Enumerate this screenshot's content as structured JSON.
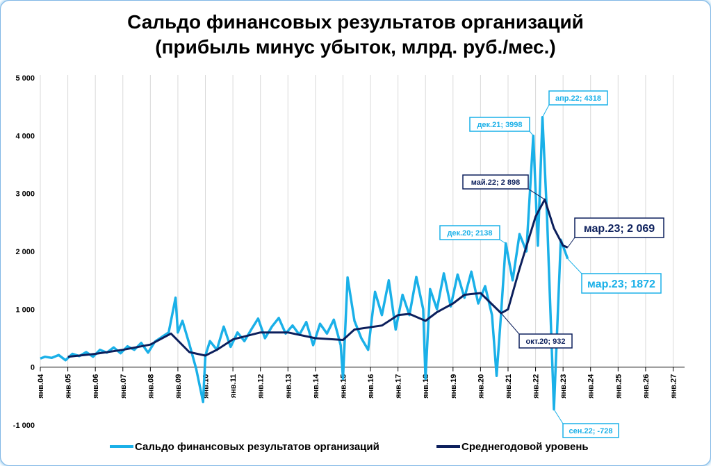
{
  "chart_data": {
    "type": "line",
    "title_line1": "Сальдо финансовых результатов организаций",
    "title_line2": "(прибыль минус убыток, млрд. руб./мес.)",
    "ylim": [
      -1000,
      5000
    ],
    "y_ticks": [
      "-1 000",
      "0",
      "1 000",
      "2 000",
      "3 000",
      "4 000",
      "5 000"
    ],
    "x_ticks": [
      "янв.04",
      "янв.05",
      "янв.06",
      "янв.07",
      "янв.08",
      "янв.09",
      "янв.10",
      "янв.11",
      "янв.12",
      "янв.13",
      "янв.14",
      "янв.15",
      "янв.16",
      "янв.17",
      "янв.18",
      "янв.19",
      "янв.20",
      "янв.21",
      "янв.22",
      "янв.23",
      "янв.24",
      "янв.25",
      "янв.26",
      "янв.27"
    ],
    "x_range": [
      "2004-01",
      "2027-06"
    ],
    "grid": "vertical",
    "legend_position": "bottom",
    "series": [
      {
        "name": "Сальдо финансовых результатов организаций",
        "color": "#1ab0e8",
        "points": [
          [
            "2004-01",
            150
          ],
          [
            "2004-03",
            180
          ],
          [
            "2004-06",
            160
          ],
          [
            "2004-09",
            210
          ],
          [
            "2004-12",
            120
          ],
          [
            "2005-03",
            230
          ],
          [
            "2005-06",
            190
          ],
          [
            "2005-09",
            260
          ],
          [
            "2005-12",
            180
          ],
          [
            "2006-03",
            300
          ],
          [
            "2006-06",
            250
          ],
          [
            "2006-09",
            340
          ],
          [
            "2006-12",
            240
          ],
          [
            "2007-03",
            360
          ],
          [
            "2007-06",
            300
          ],
          [
            "2007-09",
            420
          ],
          [
            "2007-12",
            250
          ],
          [
            "2008-03",
            440
          ],
          [
            "2008-06",
            520
          ],
          [
            "2008-09",
            600
          ],
          [
            "2008-12",
            1200
          ],
          [
            "2009-01",
            600
          ],
          [
            "2009-03",
            800
          ],
          [
            "2009-06",
            400
          ],
          [
            "2009-09",
            -30
          ],
          [
            "2009-12",
            -600
          ],
          [
            "2010-01",
            200
          ],
          [
            "2010-03",
            450
          ],
          [
            "2010-06",
            300
          ],
          [
            "2010-09",
            700
          ],
          [
            "2010-12",
            350
          ],
          [
            "2011-03",
            600
          ],
          [
            "2011-06",
            450
          ],
          [
            "2011-09",
            650
          ],
          [
            "2011-12",
            840
          ],
          [
            "2012-03",
            500
          ],
          [
            "2012-06",
            700
          ],
          [
            "2012-09",
            850
          ],
          [
            "2012-12",
            580
          ],
          [
            "2013-03",
            720
          ],
          [
            "2013-06",
            560
          ],
          [
            "2013-09",
            780
          ],
          [
            "2013-12",
            380
          ],
          [
            "2014-03",
            750
          ],
          [
            "2014-06",
            580
          ],
          [
            "2014-09",
            820
          ],
          [
            "2014-12",
            380
          ],
          [
            "2015-01",
            -200
          ],
          [
            "2015-03",
            1550
          ],
          [
            "2015-06",
            800
          ],
          [
            "2015-09",
            500
          ],
          [
            "2015-12",
            300
          ],
          [
            "2016-03",
            1300
          ],
          [
            "2016-06",
            900
          ],
          [
            "2016-09",
            1500
          ],
          [
            "2016-12",
            650
          ],
          [
            "2017-03",
            1250
          ],
          [
            "2017-06",
            900
          ],
          [
            "2017-09",
            1560
          ],
          [
            "2017-12",
            1000
          ],
          [
            "2018-01",
            -200
          ],
          [
            "2018-03",
            1350
          ],
          [
            "2018-06",
            1000
          ],
          [
            "2018-09",
            1620
          ],
          [
            "2018-12",
            1050
          ],
          [
            "2019-03",
            1600
          ],
          [
            "2019-06",
            1200
          ],
          [
            "2019-09",
            1650
          ],
          [
            "2019-12",
            1100
          ],
          [
            "2020-03",
            1400
          ],
          [
            "2020-06",
            900
          ],
          [
            "2020-08",
            -150
          ],
          [
            "2020-10",
            950
          ],
          [
            "2020-12",
            2138
          ],
          [
            "2021-03",
            1500
          ],
          [
            "2021-06",
            2300
          ],
          [
            "2021-09",
            2000
          ],
          [
            "2021-12",
            3998
          ],
          [
            "2022-02",
            2100
          ],
          [
            "2022-04",
            4318
          ],
          [
            "2022-06",
            2600
          ],
          [
            "2022-09",
            -728
          ],
          [
            "2022-12",
            2200
          ],
          [
            "2023-03",
            1872
          ]
        ]
      },
      {
        "name": "Среднегодовой уровень",
        "color": "#0c1f5c",
        "points": [
          [
            "2005-01",
            180
          ],
          [
            "2006-01",
            230
          ],
          [
            "2007-01",
            300
          ],
          [
            "2008-01",
            390
          ],
          [
            "2008-10",
            580
          ],
          [
            "2009-06",
            260
          ],
          [
            "2010-01",
            200
          ],
          [
            "2010-06",
            300
          ],
          [
            "2011-01",
            480
          ],
          [
            "2012-01",
            600
          ],
          [
            "2013-01",
            600
          ],
          [
            "2014-01",
            500
          ],
          [
            "2015-01",
            470
          ],
          [
            "2015-06",
            650
          ],
          [
            "2016-06",
            720
          ],
          [
            "2017-01",
            900
          ],
          [
            "2017-06",
            920
          ],
          [
            "2018-01",
            800
          ],
          [
            "2018-06",
            950
          ],
          [
            "2019-01",
            1100
          ],
          [
            "2019-06",
            1250
          ],
          [
            "2020-01",
            1280
          ],
          [
            "2020-10",
            932
          ],
          [
            "2021-01",
            1000
          ],
          [
            "2021-06",
            1700
          ],
          [
            "2022-01",
            2600
          ],
          [
            "2022-05",
            2898
          ],
          [
            "2022-09",
            2400
          ],
          [
            "2023-01",
            2100
          ],
          [
            "2023-03",
            2069
          ]
        ]
      }
    ],
    "annotations": [
      {
        "text": "апр.22; 4318",
        "series": 0,
        "at": "2022-04"
      },
      {
        "text": "дек.21; 3998",
        "series": 0,
        "at": "2021-12"
      },
      {
        "text": "май.22; 2 898",
        "series": 1,
        "at": "2022-05"
      },
      {
        "text": "дек.20; 2138",
        "series": 0,
        "at": "2020-12"
      },
      {
        "text": "мар.23; 2 069",
        "series": 1,
        "at": "2023-03"
      },
      {
        "text": "мар.23; 1872",
        "series": 0,
        "at": "2023-03"
      },
      {
        "text": "окт.20; 932",
        "series": 1,
        "at": "2020-10"
      },
      {
        "text": "сен.22; -728",
        "series": 0,
        "at": "2022-09"
      }
    ]
  }
}
